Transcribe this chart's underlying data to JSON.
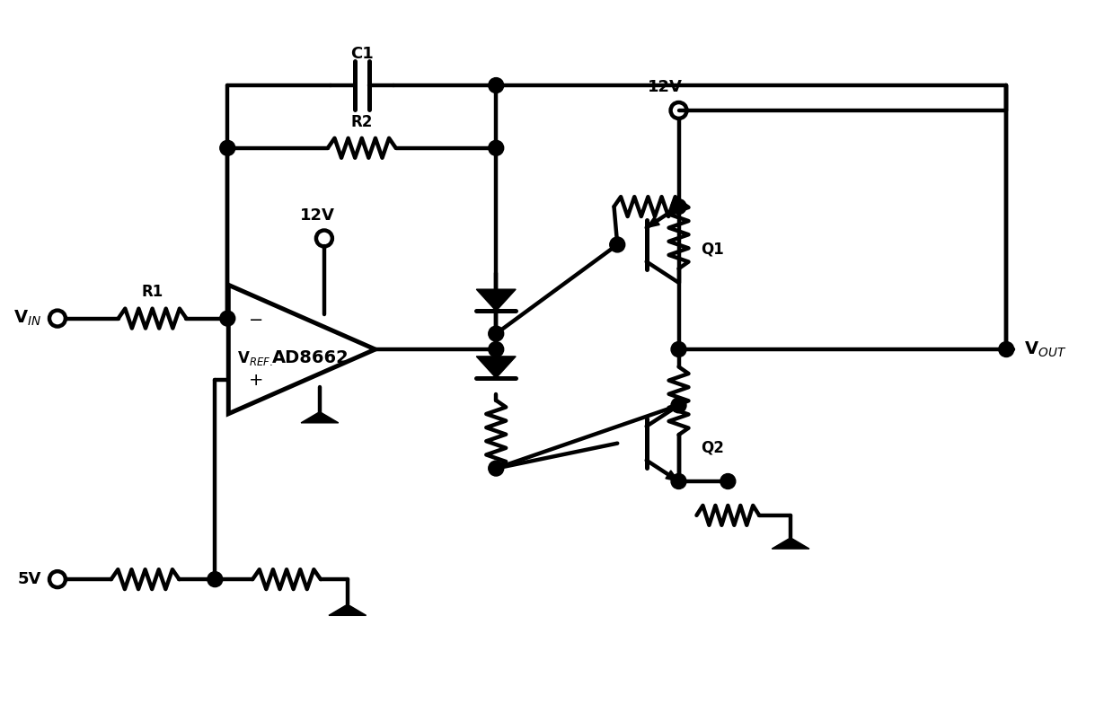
{
  "bg_color": "#ffffff",
  "line_color": "#000000",
  "lw": 3.2,
  "lw_thick": 3.6,
  "fig_width": 12.39,
  "fig_height": 7.94,
  "labels": {
    "VIN": "V$_{IN}$",
    "VREF": "V$_{REF.}$",
    "VOUT": "V$_{OUT}$",
    "R1": "R1",
    "R2": "R2",
    "C1": "C1",
    "12V_opamp": "12V",
    "12V_q1": "12V",
    "5V": "5V",
    "AD8662": "AD8662",
    "Q1": "Q1",
    "Q2": "Q2",
    "minus": "$-$",
    "plus": "$+$"
  },
  "coord": {
    "xlim": [
      0,
      12.39
    ],
    "ylim": [
      0,
      7.94
    ]
  }
}
